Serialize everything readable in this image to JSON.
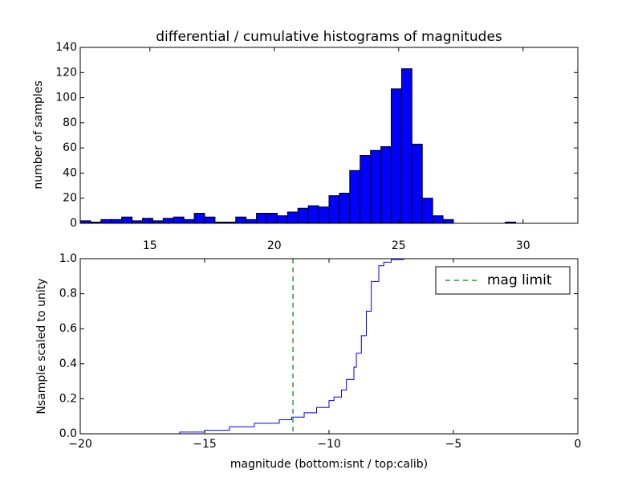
{
  "chart_data": [
    {
      "type": "histogram",
      "title": "differential / cumulative histograms of magnitudes",
      "ylabel": "number of samples",
      "bins": [
        12.2,
        12.617,
        13.033,
        13.45,
        13.867,
        14.283,
        14.7,
        15.117,
        15.533,
        15.95,
        16.367,
        16.783,
        17.2,
        17.617,
        18.033,
        18.45,
        18.867,
        19.283,
        19.7,
        20.117,
        20.533,
        20.95,
        21.367,
        21.783,
        22.2,
        22.617,
        23.033,
        23.45,
        23.867,
        24.283,
        24.7,
        25.117,
        25.533,
        25.95,
        26.367,
        26.783,
        27.2,
        27.617,
        28.033,
        28.45,
        28.867,
        29.283,
        29.7,
        30.117,
        30.533,
        30.95,
        31.367,
        31.783,
        32.2
      ],
      "values": [
        2,
        1,
        3,
        3,
        5,
        2,
        4,
        2,
        4,
        5,
        3,
        8,
        5,
        1,
        1,
        5,
        3,
        8,
        8,
        6,
        9,
        12,
        14,
        13,
        22,
        24,
        42,
        54,
        58,
        61,
        107,
        123,
        63,
        20,
        6,
        3,
        0,
        0,
        0,
        0,
        0,
        1,
        0,
        0,
        0,
        0,
        0,
        0
      ],
      "color": "#0000ff",
      "xlim": [
        12.2,
        32.2
      ],
      "ylim": [
        0,
        140
      ],
      "xticks": [
        15,
        20,
        25,
        30
      ],
      "yticks": [
        0,
        20,
        40,
        60,
        80,
        100,
        120,
        140
      ]
    },
    {
      "type": "line",
      "xlabel": "magnitude (bottom:isnt / top:calib)",
      "ylabel": "Nsample scaled to unity",
      "drawstyle": "steps-post",
      "xlim": [
        -20,
        0
      ],
      "ylim": [
        0,
        1
      ],
      "xticks": [
        {
          "value": -20,
          "label": "−20"
        },
        {
          "value": -15,
          "label": "−15"
        },
        {
          "value": -10,
          "label": "−10"
        },
        {
          "value": -5,
          "label": "−5"
        },
        0
      ],
      "yticks": [
        {
          "value": 0,
          "label": "0.0"
        },
        0.2,
        0.4,
        0.6,
        0.8,
        {
          "value": 1,
          "label": "1.0"
        }
      ],
      "series": [
        {
          "color": "#0000ff",
          "x": [
            -20,
            -16,
            -15,
            -14,
            -13,
            -12,
            -11.5,
            -11,
            -10.5,
            -10,
            -9.8,
            -9.5,
            -9.3,
            -9,
            -8.9,
            -8.7,
            -8.5,
            -8.3,
            -8,
            -7.8,
            -7.5,
            -7,
            0
          ],
          "values": [
            0,
            0.01,
            0.02,
            0.04,
            0.06,
            0.08,
            0.095,
            0.12,
            0.15,
            0.19,
            0.21,
            0.25,
            0.31,
            0.38,
            0.46,
            0.56,
            0.7,
            0.87,
            0.96,
            0.98,
            0.995,
            1,
            0
          ]
        }
      ],
      "vlines": [
        {
          "name": "mag limit",
          "x": -11.45,
          "color": "#008000",
          "linestyle": "dashed"
        }
      ],
      "legend": "upper right"
    }
  ]
}
